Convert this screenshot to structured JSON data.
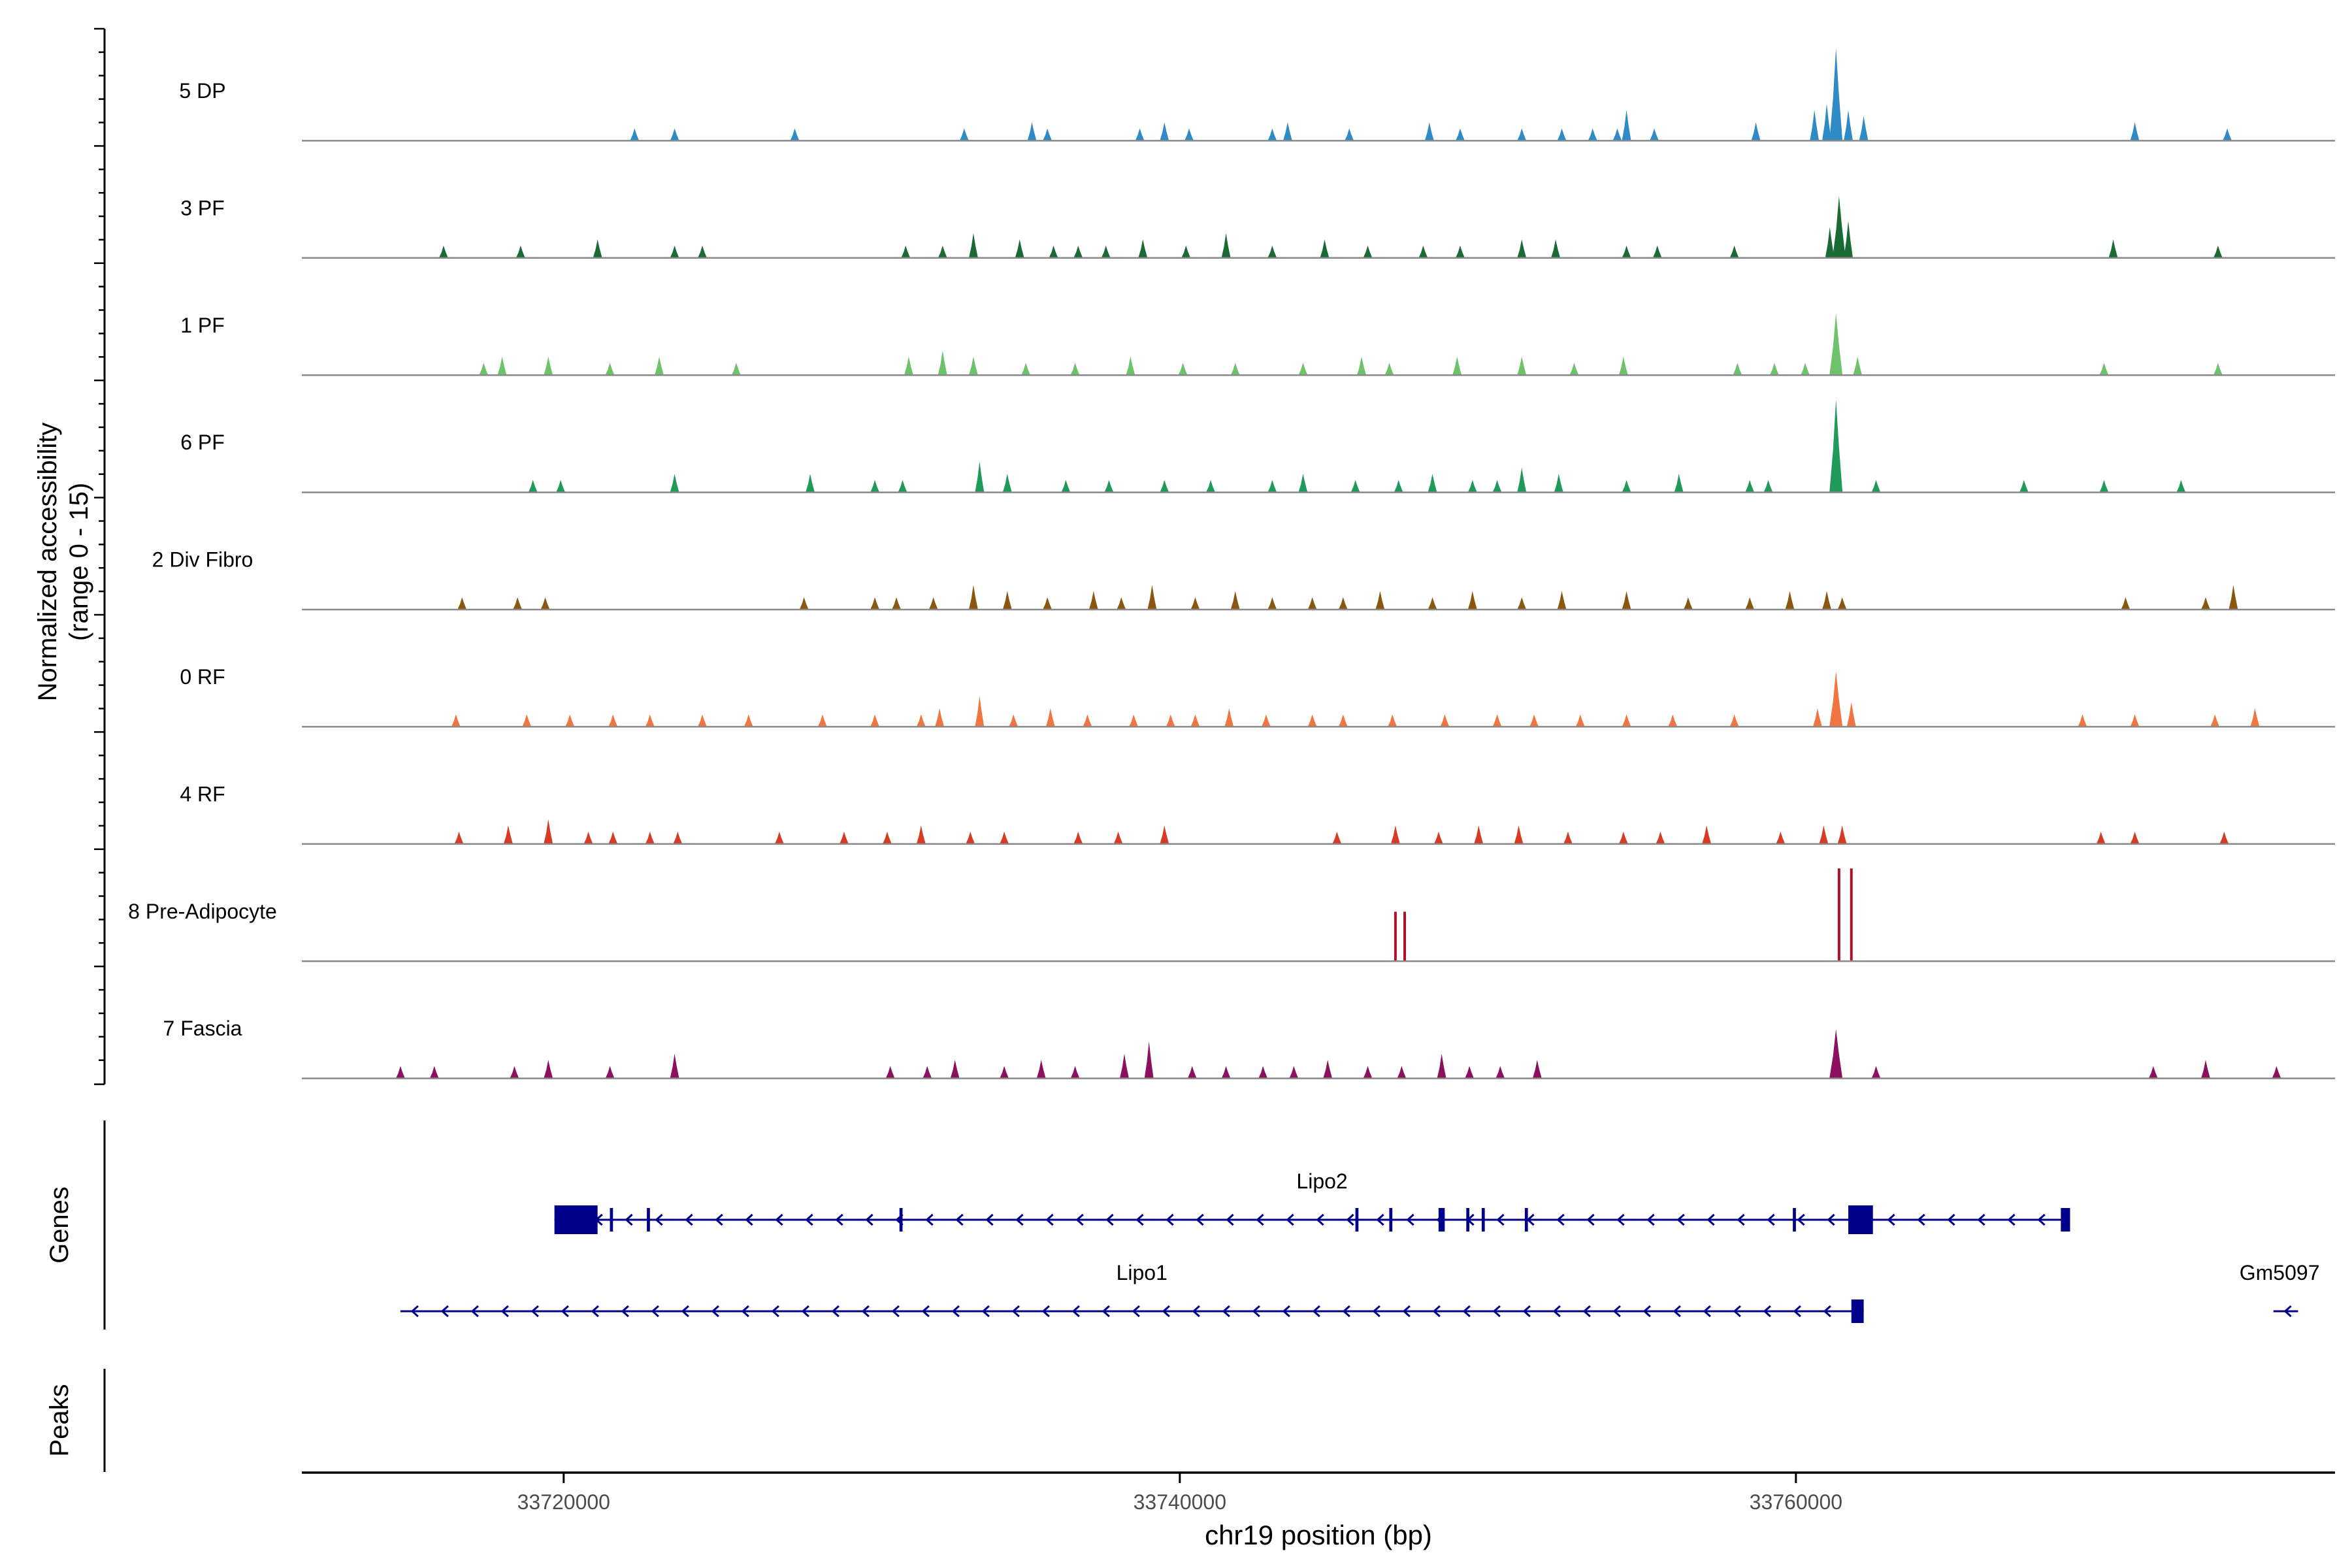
{
  "chart_data": {
    "type": "area",
    "title": "",
    "ylabel": [
      "Normalized accessibility",
      "(range 0 - 15)"
    ],
    "xlabel": "chr19 position (bp)",
    "xlim": [
      33711500,
      33777500
    ],
    "ylim": [
      0,
      15
    ],
    "x_ticks": [
      33720000,
      33740000,
      33760000
    ],
    "x_tick_labels": [
      "33720000",
      "33740000",
      "33760000"
    ],
    "tracks": [
      {
        "name": "5 DP",
        "color": "#2F8BC6",
        "peaks": [
          [
            33722300,
            2
          ],
          [
            33723600,
            2
          ],
          [
            33727500,
            2
          ],
          [
            33733000,
            2
          ],
          [
            33735200,
            3
          ],
          [
            33735700,
            2
          ],
          [
            33738700,
            2
          ],
          [
            33739500,
            3
          ],
          [
            33740300,
            2
          ],
          [
            33743000,
            2
          ],
          [
            33743500,
            3
          ],
          [
            33745500,
            2
          ],
          [
            33748100,
            3
          ],
          [
            33749100,
            2
          ],
          [
            33751100,
            2
          ],
          [
            33752400,
            2
          ],
          [
            33753400,
            2
          ],
          [
            33754200,
            2
          ],
          [
            33754500,
            5
          ],
          [
            33755400,
            2
          ],
          [
            33758700,
            3
          ],
          [
            33760600,
            5
          ],
          [
            33761000,
            6
          ],
          [
            33761300,
            15
          ],
          [
            33761700,
            5
          ],
          [
            33762200,
            4
          ],
          [
            33771000,
            3
          ],
          [
            33774000,
            2
          ]
        ]
      },
      {
        "name": "3 PF",
        "color": "#1A6B33",
        "peaks": [
          [
            33716100,
            2
          ],
          [
            33718600,
            2
          ],
          [
            33721100,
            3
          ],
          [
            33723600,
            2
          ],
          [
            33724500,
            2
          ],
          [
            33731100,
            2
          ],
          [
            33732300,
            2
          ],
          [
            33733300,
            4
          ],
          [
            33734800,
            3
          ],
          [
            33735900,
            2
          ],
          [
            33736700,
            2
          ],
          [
            33737600,
            2
          ],
          [
            33738800,
            3
          ],
          [
            33740200,
            2
          ],
          [
            33741500,
            4
          ],
          [
            33743000,
            2
          ],
          [
            33744700,
            3
          ],
          [
            33746100,
            2
          ],
          [
            33747900,
            2
          ],
          [
            33749100,
            2
          ],
          [
            33751100,
            3
          ],
          [
            33752200,
            3
          ],
          [
            33754500,
            2
          ],
          [
            33755500,
            2
          ],
          [
            33758000,
            2
          ],
          [
            33761100,
            5
          ],
          [
            33761400,
            10
          ],
          [
            33761700,
            6
          ],
          [
            33770300,
            3
          ],
          [
            33773700,
            2
          ]
        ]
      },
      {
        "name": "1 PF",
        "color": "#6CC36A",
        "peaks": [
          [
            33717400,
            2
          ],
          [
            33718000,
            3
          ],
          [
            33719500,
            3
          ],
          [
            33721500,
            2
          ],
          [
            33723100,
            3
          ],
          [
            33725600,
            2
          ],
          [
            33731200,
            3
          ],
          [
            33732300,
            4
          ],
          [
            33733300,
            3
          ],
          [
            33735000,
            2
          ],
          [
            33736600,
            2
          ],
          [
            33738400,
            3
          ],
          [
            33740100,
            2
          ],
          [
            33741800,
            2
          ],
          [
            33744000,
            2
          ],
          [
            33745900,
            3
          ],
          [
            33746800,
            2
          ],
          [
            33749000,
            3
          ],
          [
            33751100,
            3
          ],
          [
            33752800,
            2
          ],
          [
            33754400,
            3
          ],
          [
            33758100,
            2
          ],
          [
            33759300,
            2
          ],
          [
            33760300,
            2
          ],
          [
            33761300,
            10
          ],
          [
            33762000,
            3
          ],
          [
            33770000,
            2
          ],
          [
            33773700,
            2
          ]
        ]
      },
      {
        "name": "6 PF",
        "color": "#1F9A5A",
        "peaks": [
          [
            33719000,
            2
          ],
          [
            33719900,
            2
          ],
          [
            33723600,
            3
          ],
          [
            33728000,
            3
          ],
          [
            33730100,
            2
          ],
          [
            33731000,
            2
          ],
          [
            33733500,
            5
          ],
          [
            33734400,
            3
          ],
          [
            33736300,
            2
          ],
          [
            33737700,
            2
          ],
          [
            33739500,
            2
          ],
          [
            33741000,
            2
          ],
          [
            33743000,
            2
          ],
          [
            33744000,
            3
          ],
          [
            33745700,
            2
          ],
          [
            33747100,
            2
          ],
          [
            33748200,
            3
          ],
          [
            33749500,
            2
          ],
          [
            33750300,
            2
          ],
          [
            33751100,
            4
          ],
          [
            33752300,
            3
          ],
          [
            33754500,
            2
          ],
          [
            33756200,
            3
          ],
          [
            33758500,
            2
          ],
          [
            33759100,
            2
          ],
          [
            33761300,
            15
          ],
          [
            33762600,
            2
          ],
          [
            33767400,
            2
          ],
          [
            33770000,
            2
          ],
          [
            33772500,
            2
          ]
        ]
      },
      {
        "name": "2 Div Fibro",
        "color": "#8A5710",
        "peaks": [
          [
            33716700,
            2
          ],
          [
            33718500,
            2
          ],
          [
            33719400,
            2
          ],
          [
            33727800,
            2
          ],
          [
            33730100,
            2
          ],
          [
            33730800,
            2
          ],
          [
            33732000,
            2
          ],
          [
            33733300,
            4
          ],
          [
            33734400,
            3
          ],
          [
            33735700,
            2
          ],
          [
            33737200,
            3
          ],
          [
            33738100,
            2
          ],
          [
            33739100,
            4
          ],
          [
            33740500,
            2
          ],
          [
            33741800,
            3
          ],
          [
            33743000,
            2
          ],
          [
            33744300,
            2
          ],
          [
            33745300,
            2
          ],
          [
            33746500,
            3
          ],
          [
            33748200,
            2
          ],
          [
            33749500,
            3
          ],
          [
            33751100,
            2
          ],
          [
            33752400,
            3
          ],
          [
            33754500,
            3
          ],
          [
            33756500,
            2
          ],
          [
            33758500,
            2
          ],
          [
            33759800,
            3
          ],
          [
            33761000,
            3
          ],
          [
            33761500,
            2
          ],
          [
            33770700,
            2
          ],
          [
            33773300,
            2
          ],
          [
            33774200,
            4
          ]
        ]
      },
      {
        "name": "0 RF",
        "color": "#F07540",
        "peaks": [
          [
            33716500,
            2
          ],
          [
            33718800,
            2
          ],
          [
            33720200,
            2
          ],
          [
            33721600,
            2
          ],
          [
            33722800,
            2
          ],
          [
            33724500,
            2
          ],
          [
            33726000,
            2
          ],
          [
            33728400,
            2
          ],
          [
            33730100,
            2
          ],
          [
            33731600,
            2
          ],
          [
            33732200,
            3
          ],
          [
            33733500,
            5
          ],
          [
            33734600,
            2
          ],
          [
            33735800,
            3
          ],
          [
            33737000,
            2
          ],
          [
            33738500,
            2
          ],
          [
            33739700,
            2
          ],
          [
            33740500,
            2
          ],
          [
            33741600,
            3
          ],
          [
            33742800,
            2
          ],
          [
            33744300,
            2
          ],
          [
            33745300,
            2
          ],
          [
            33746900,
            2
          ],
          [
            33748600,
            2
          ],
          [
            33750300,
            2
          ],
          [
            33751500,
            2
          ],
          [
            33753000,
            2
          ],
          [
            33754500,
            2
          ],
          [
            33756000,
            2
          ],
          [
            33758000,
            2
          ],
          [
            33760700,
            3
          ],
          [
            33761300,
            9
          ],
          [
            33761800,
            4
          ],
          [
            33769300,
            2
          ],
          [
            33771000,
            2
          ],
          [
            33773600,
            2
          ],
          [
            33774900,
            3
          ]
        ]
      },
      {
        "name": "4 RF",
        "color": "#D83A22",
        "peaks": [
          [
            33716600,
            2
          ],
          [
            33718200,
            3
          ],
          [
            33719500,
            4
          ],
          [
            33720800,
            2
          ],
          [
            33721600,
            2
          ],
          [
            33722800,
            2
          ],
          [
            33723700,
            2
          ],
          [
            33727000,
            2
          ],
          [
            33729100,
            2
          ],
          [
            33730500,
            2
          ],
          [
            33731600,
            3
          ],
          [
            33733200,
            2
          ],
          [
            33734300,
            2
          ],
          [
            33736700,
            2
          ],
          [
            33738000,
            2
          ],
          [
            33739500,
            3
          ],
          [
            33745100,
            2
          ],
          [
            33747000,
            3
          ],
          [
            33748400,
            2
          ],
          [
            33749700,
            3
          ],
          [
            33751000,
            3
          ],
          [
            33752600,
            2
          ],
          [
            33754400,
            2
          ],
          [
            33755600,
            2
          ],
          [
            33757100,
            3
          ],
          [
            33759500,
            2
          ],
          [
            33760900,
            3
          ],
          [
            33761500,
            3
          ],
          [
            33769900,
            2
          ],
          [
            33771000,
            2
          ],
          [
            33773900,
            2
          ]
        ]
      },
      {
        "name": "8 Pre-Adipocyte",
        "color": "#AE0F2A",
        "peaks": [
          [
            33747000,
            8
          ],
          [
            33747300,
            8
          ],
          [
            33761400,
            15
          ],
          [
            33761800,
            15
          ]
        ]
      },
      {
        "name": "7 Fascia",
        "color": "#8C1060",
        "peaks": [
          [
            33714700,
            2
          ],
          [
            33715800,
            2
          ],
          [
            33718400,
            2
          ],
          [
            33719500,
            3
          ],
          [
            33721500,
            2
          ],
          [
            33723600,
            4
          ],
          [
            33730600,
            2
          ],
          [
            33731800,
            2
          ],
          [
            33732700,
            3
          ],
          [
            33734300,
            2
          ],
          [
            33735500,
            3
          ],
          [
            33736600,
            2
          ],
          [
            33738200,
            4
          ],
          [
            33739000,
            6
          ],
          [
            33740400,
            2
          ],
          [
            33741500,
            2
          ],
          [
            33742700,
            2
          ],
          [
            33743700,
            2
          ],
          [
            33744800,
            3
          ],
          [
            33746100,
            2
          ],
          [
            33747200,
            2
          ],
          [
            33748500,
            4
          ],
          [
            33749400,
            2
          ],
          [
            33750400,
            2
          ],
          [
            33751600,
            3
          ],
          [
            33761300,
            8
          ],
          [
            33762600,
            2
          ],
          [
            33771600,
            2
          ],
          [
            33773300,
            3
          ],
          [
            33775600,
            2
          ]
        ]
      }
    ],
    "genes_panel": {
      "label": "Genes",
      "genes": [
        {
          "name": "Lipo2",
          "row": 1,
          "start": 33719700,
          "end": 33768900,
          "exons": [
            [
              33719700,
              33721100
            ],
            [
              33721500,
              33721600
            ],
            [
              33722700,
              33722800
            ],
            [
              33730900,
              33731000
            ],
            [
              33745700,
              33745800
            ],
            [
              33746800,
              33746900
            ],
            [
              33748400,
              33748600
            ],
            [
              33749300,
              33749400
            ],
            [
              33749800,
              33749900
            ],
            [
              33751200,
              33751300
            ],
            [
              33759900,
              33760000
            ],
            [
              33761700,
              33762500
            ],
            [
              33768600,
              33768900
            ]
          ]
        },
        {
          "name": "Lipo1",
          "row": 2,
          "start": 33714700,
          "end": 33762200,
          "exons": [
            [
              33761800,
              33762200
            ]
          ]
        },
        {
          "name": "Gm5097",
          "row": 2,
          "start": 33775500,
          "end": 33776300,
          "exons": []
        }
      ]
    },
    "peaks_panel": {
      "label": "Peaks"
    }
  }
}
